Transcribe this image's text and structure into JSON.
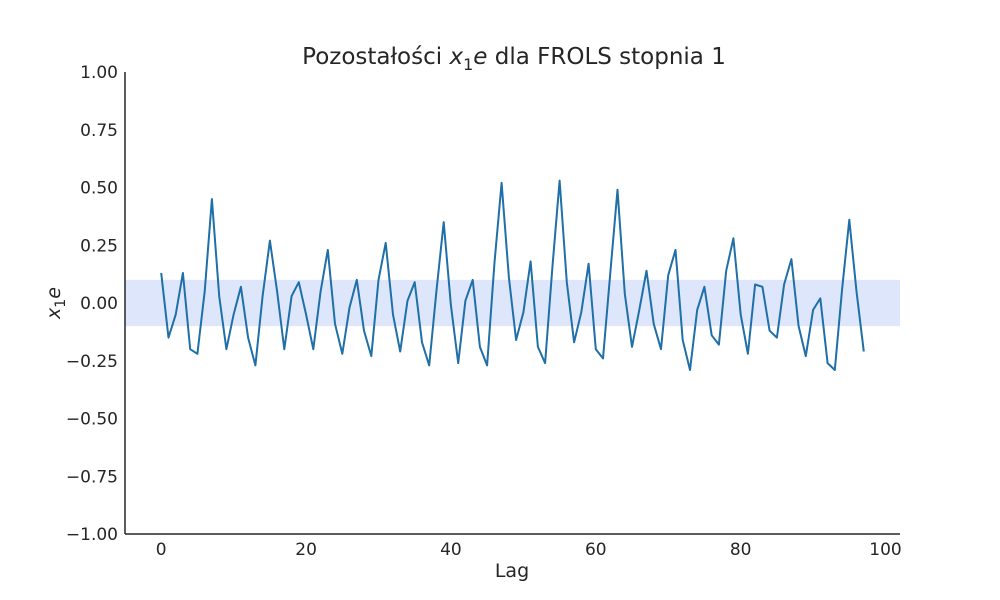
{
  "chart_data": {
    "type": "line",
    "title_prefix": "Pozostałości ",
    "title_math_var": "x",
    "title_math_sub": "1",
    "title_math_suffix": "e",
    "title_suffix": " dla FROLS stopnia 1",
    "xlabel": "Lag",
    "ylabel_var": "x",
    "ylabel_sub": "1",
    "ylabel_suffix": "e",
    "xlim": [
      -5,
      102
    ],
    "ylim": [
      -1.0,
      1.0
    ],
    "xticks": [
      0,
      20,
      40,
      60,
      80,
      100
    ],
    "xtick_labels": [
      "0",
      "20",
      "40",
      "60",
      "80",
      "100"
    ],
    "yticks": [
      1.0,
      0.75,
      0.5,
      0.25,
      0.0,
      -0.25,
      -0.5,
      -0.75,
      -1.0
    ],
    "ytick_labels": [
      "1.00",
      "0.75",
      "0.50",
      "0.25",
      "0.00",
      "−0.25",
      "−0.50",
      "−0.75",
      "−1.00"
    ],
    "confidence_band": [
      -0.1,
      0.1
    ],
    "band_color": "#dde6fb",
    "line_color": "#1f6fa8",
    "grid": false,
    "x": [
      0,
      1,
      2,
      3,
      4,
      5,
      6,
      7,
      8,
      9,
      10,
      11,
      12,
      13,
      14,
      15,
      16,
      17,
      18,
      19,
      20,
      21,
      22,
      23,
      24,
      25,
      26,
      27,
      28,
      29,
      30,
      31,
      32,
      33,
      34,
      35,
      36,
      37,
      38,
      39,
      40,
      41,
      42,
      43,
      44,
      45,
      46,
      47,
      48,
      49,
      50,
      51,
      52,
      53,
      54,
      55,
      56,
      57,
      58,
      59,
      60,
      61,
      62,
      63,
      64,
      65,
      66,
      67,
      68,
      69,
      70,
      71,
      72,
      73,
      74,
      75,
      76,
      77,
      78,
      79,
      80,
      81,
      82,
      83,
      84,
      85,
      86,
      87,
      88,
      89,
      90,
      91,
      92,
      93,
      94,
      95,
      96,
      97
    ],
    "y": [
      0.13,
      -0.15,
      -0.05,
      0.13,
      -0.2,
      -0.22,
      0.05,
      0.45,
      0.03,
      -0.2,
      -0.05,
      0.07,
      -0.15,
      -0.27,
      0.03,
      0.27,
      0.05,
      -0.2,
      0.03,
      0.09,
      -0.05,
      -0.2,
      0.05,
      0.23,
      -0.09,
      -0.22,
      -0.02,
      0.1,
      -0.12,
      -0.23,
      0.1,
      0.26,
      -0.05,
      -0.21,
      0.01,
      0.09,
      -0.17,
      -0.27,
      0.05,
      0.35,
      -0.01,
      -0.26,
      0.01,
      0.1,
      -0.19,
      -0.27,
      0.17,
      0.52,
      0.11,
      -0.16,
      -0.04,
      0.18,
      -0.19,
      -0.26,
      0.15,
      0.53,
      0.09,
      -0.17,
      -0.04,
      0.17,
      -0.2,
      -0.24,
      0.13,
      0.49,
      0.04,
      -0.19,
      -0.03,
      0.14,
      -0.09,
      -0.2,
      0.12,
      0.23,
      -0.16,
      -0.29,
      -0.03,
      0.07,
      -0.14,
      -0.18,
      0.14,
      0.28,
      -0.05,
      -0.22,
      0.08,
      0.07,
      -0.12,
      -0.15,
      0.08,
      0.19,
      -0.1,
      -0.23,
      -0.03,
      0.02,
      -0.26,
      -0.29,
      0.06,
      0.36,
      0.05,
      -0.21
    ]
  }
}
